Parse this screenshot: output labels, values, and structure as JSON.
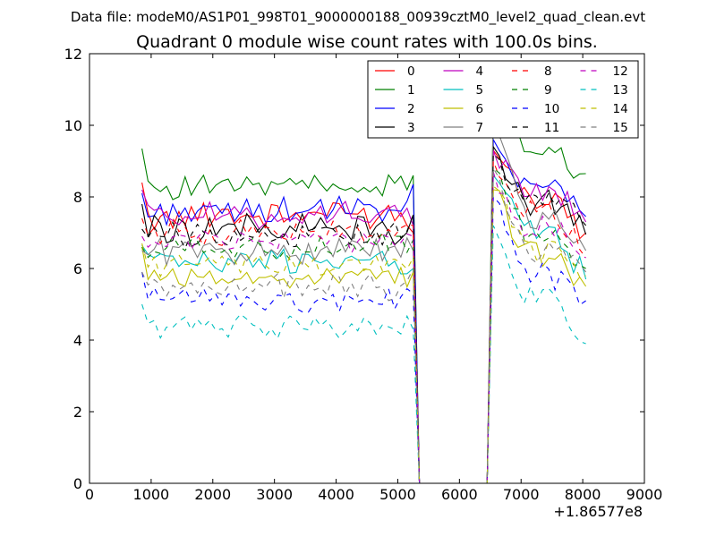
{
  "chart_data": {
    "type": "line",
    "suptitle": "Data file: modeM0/AS1P01_998T01_9000000188_00939cztM0_level2_quad_clean.evt",
    "title": "Quadrant 0 module wise count rates with 100.0s bins.",
    "xlabel": "",
    "ylabel": "",
    "xlim": [
      0,
      9000
    ],
    "ylim": [
      0,
      12
    ],
    "x_offset_label": "+1.86577e8",
    "x_ticks": [
      0,
      1000,
      2000,
      3000,
      4000,
      5000,
      6000,
      7000,
      8000,
      9000
    ],
    "x_tick_labels": [
      "0",
      "1000",
      "2000",
      "3000",
      "4000",
      "5000",
      "6000",
      "7000",
      "8000",
      "9000"
    ],
    "y_ticks": [
      0,
      2,
      4,
      6,
      8,
      10,
      12
    ],
    "y_tick_labels": [
      "0",
      "2",
      "4",
      "6",
      "8",
      "10",
      "12"
    ],
    "grid": false,
    "legend_position": "top-right",
    "legend_columns": 4,
    "x_segments": [
      {
        "start": 850,
        "end": 5250,
        "step": 100
      },
      {
        "start": 5350,
        "end": 5350,
        "step": 100
      },
      {
        "start": 5450,
        "end": 6450,
        "step": 100
      },
      {
        "start": 6550,
        "end": 8050,
        "step": 100
      }
    ],
    "series": [
      {
        "name": "0",
        "color": "#ff0000",
        "dash": "solid",
        "seg1_mean": 7.5,
        "seg1_amp": 0.35,
        "seg1_start": 8.4,
        "seg1_end": 7.0,
        "drop": 0.0,
        "seg3_start": 9.3,
        "seg3_mean": 7.9,
        "seg3_end": 7.0
      },
      {
        "name": "1",
        "color": "#008000",
        "dash": "solid",
        "seg1_mean": 8.3,
        "seg1_amp": 0.3,
        "seg1_start": 9.35,
        "seg1_end": 8.6,
        "drop": 0.0,
        "seg3_start": 10.55,
        "seg3_mean": 9.2,
        "seg3_end": 8.65
      },
      {
        "name": "2",
        "color": "#0000ff",
        "dash": "solid",
        "seg1_mean": 7.6,
        "seg1_amp": 0.3,
        "seg1_start": 8.1,
        "seg1_end": 8.35,
        "drop": 0.0,
        "seg3_start": 9.6,
        "seg3_mean": 8.4,
        "seg3_end": 7.45
      },
      {
        "name": "3",
        "color": "#000000",
        "dash": "solid",
        "seg1_mean": 7.1,
        "seg1_amp": 0.35,
        "seg1_start": 7.8,
        "seg1_end": 7.5,
        "drop": 0.0,
        "seg3_start": 9.4,
        "seg3_mean": 7.8,
        "seg3_end": 6.95
      },
      {
        "name": "4",
        "color": "#bf00bf",
        "dash": "solid",
        "seg1_mean": 7.5,
        "seg1_amp": 0.3,
        "seg1_start": 8.2,
        "seg1_end": 7.2,
        "drop": 0.0,
        "seg3_start": 9.3,
        "seg3_mean": 8.2,
        "seg3_end": 7.3
      },
      {
        "name": "5",
        "color": "#00bfbf",
        "dash": "solid",
        "seg1_mean": 6.2,
        "seg1_amp": 0.3,
        "seg1_start": 6.65,
        "seg1_end": 6.0,
        "drop": 0.0,
        "seg3_start": 8.6,
        "seg3_mean": 7.0,
        "seg3_end": 5.7
      },
      {
        "name": "6",
        "color": "#bfbf00",
        "dash": "solid",
        "seg1_mean": 5.8,
        "seg1_amp": 0.3,
        "seg1_start": 6.6,
        "seg1_end": 5.9,
        "drop": 0.0,
        "seg3_start": 8.2,
        "seg3_mean": 6.4,
        "seg3_end": 5.5
      },
      {
        "name": "7",
        "color": "#808080",
        "dash": "solid",
        "seg1_mean": 6.5,
        "seg1_amp": 0.3,
        "seg1_start": 6.5,
        "seg1_end": 6.5,
        "drop": 0.0,
        "seg3_start": 10.5,
        "seg3_mean": 7.4,
        "seg3_end": 6.5
      },
      {
        "name": "8",
        "color": "#ff0000",
        "dash": "dashed",
        "seg1_mean": 7.0,
        "seg1_amp": 0.3,
        "seg1_start": 7.4,
        "seg1_end": 7.2,
        "drop": 0.0,
        "seg3_start": 9.0,
        "seg3_mean": 7.6,
        "seg3_end": 6.3
      },
      {
        "name": "9",
        "color": "#008000",
        "dash": "dashed",
        "seg1_mean": 6.6,
        "seg1_amp": 0.3,
        "seg1_start": 6.6,
        "seg1_end": 6.8,
        "drop": 0.0,
        "seg3_start": 8.8,
        "seg3_mean": 7.1,
        "seg3_end": 6.0
      },
      {
        "name": "10",
        "color": "#0000ff",
        "dash": "dashed",
        "seg1_mean": 5.1,
        "seg1_amp": 0.3,
        "seg1_start": 5.9,
        "seg1_end": 5.3,
        "drop": 0.0,
        "seg3_start": 8.0,
        "seg3_mean": 5.8,
        "seg3_end": 5.1
      },
      {
        "name": "11",
        "color": "#000000",
        "dash": "dashed",
        "seg1_mean": 6.9,
        "seg1_amp": 0.3,
        "seg1_start": 7.1,
        "seg1_end": 7.5,
        "drop": 0.0,
        "seg3_start": 9.2,
        "seg3_mean": 7.9,
        "seg3_end": 7.2
      },
      {
        "name": "12",
        "color": "#bf00bf",
        "dash": "dashed",
        "seg1_mean": 6.8,
        "seg1_amp": 0.3,
        "seg1_start": 6.9,
        "seg1_end": 6.9,
        "drop": 0.0,
        "seg3_start": 8.7,
        "seg3_mean": 7.2,
        "seg3_end": 6.3
      },
      {
        "name": "13",
        "color": "#00bfbf",
        "dash": "dashed",
        "seg1_mean": 4.4,
        "seg1_amp": 0.25,
        "seg1_start": 5.0,
        "seg1_end": 4.3,
        "drop": 0.0,
        "seg3_start": 7.2,
        "seg3_mean": 5.2,
        "seg3_end": 3.9
      },
      {
        "name": "14",
        "color": "#bfbf00",
        "dash": "dashed",
        "seg1_mean": 6.1,
        "seg1_amp": 0.3,
        "seg1_start": 6.7,
        "seg1_end": 6.3,
        "drop": 0.0,
        "seg3_start": 8.3,
        "seg3_mean": 6.5,
        "seg3_end": 5.8
      },
      {
        "name": "15",
        "color": "#808080",
        "dash": "dashed",
        "seg1_mean": 5.5,
        "seg1_amp": 0.3,
        "seg1_start": 5.9,
        "seg1_end": 6.0,
        "drop": 0.0,
        "seg3_start": 8.8,
        "seg3_mean": 6.5,
        "seg3_end": 5.9
      }
    ]
  }
}
